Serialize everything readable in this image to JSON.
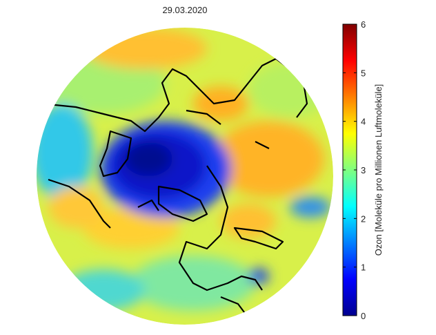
{
  "title": "29.03.2020",
  "colorbar": {
    "label": "Ozon [Moleküle pro Millionen Luftmoleküle]",
    "lim": [
      0,
      6
    ],
    "ticks": [
      0,
      1,
      2,
      3,
      4,
      5,
      6
    ]
  }
}
